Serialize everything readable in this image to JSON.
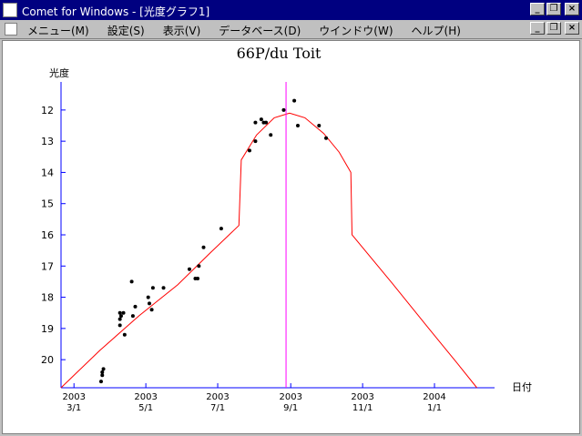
{
  "window": {
    "title": "Comet for Windows - [光度グラフ1]",
    "buttons": {
      "minimize": "_",
      "restore": "❐",
      "close": "×"
    }
  },
  "menu": {
    "items": [
      "メニュー(M)",
      "設定(S)",
      "表示(V)",
      "データベース(D)",
      "ウインドウ(W)",
      "ヘルプ(H)"
    ]
  },
  "chart_data": {
    "type": "scatter",
    "title": "66P/du Toit",
    "ylabel": "光度",
    "xlabel": "日付",
    "y_ticks": [
      12,
      13,
      14,
      15,
      16,
      17,
      18,
      19,
      20
    ],
    "ylim": [
      20.9,
      11.1
    ],
    "x_ticks": [
      {
        "year": "2003",
        "date": "3/1",
        "day": 0
      },
      {
        "year": "2003",
        "date": "5/1",
        "day": 61
      },
      {
        "year": "2003",
        "date": "7/1",
        "day": 122
      },
      {
        "year": "2003",
        "date": "9/1",
        "day": 184
      },
      {
        "year": "2003",
        "date": "11/1",
        "day": 245
      },
      {
        "year": "2004",
        "date": "1/1",
        "day": 306
      }
    ],
    "xlim": [
      -11,
      357
    ],
    "marker_day": 180,
    "points": [
      {
        "day": 23,
        "mag": 20.7
      },
      {
        "day": 24,
        "mag": 20.5
      },
      {
        "day": 24,
        "mag": 20.4
      },
      {
        "day": 25,
        "mag": 20.3
      },
      {
        "day": 39,
        "mag": 18.9
      },
      {
        "day": 39,
        "mag": 18.7
      },
      {
        "day": 39,
        "mag": 18.5
      },
      {
        "day": 40,
        "mag": 18.6
      },
      {
        "day": 42,
        "mag": 18.5
      },
      {
        "day": 43,
        "mag": 19.2
      },
      {
        "day": 49,
        "mag": 17.5
      },
      {
        "day": 50,
        "mag": 18.6
      },
      {
        "day": 52,
        "mag": 18.3
      },
      {
        "day": 63,
        "mag": 18.0
      },
      {
        "day": 64,
        "mag": 18.2
      },
      {
        "day": 66,
        "mag": 18.4
      },
      {
        "day": 67,
        "mag": 17.7
      },
      {
        "day": 76,
        "mag": 17.7
      },
      {
        "day": 98,
        "mag": 17.1
      },
      {
        "day": 103,
        "mag": 17.4
      },
      {
        "day": 105,
        "mag": 17.4
      },
      {
        "day": 106,
        "mag": 17.0
      },
      {
        "day": 110,
        "mag": 16.4
      },
      {
        "day": 125,
        "mag": 15.8
      },
      {
        "day": 149,
        "mag": 13.3
      },
      {
        "day": 154,
        "mag": 13.0
      },
      {
        "day": 154,
        "mag": 12.4
      },
      {
        "day": 159,
        "mag": 12.3
      },
      {
        "day": 161,
        "mag": 12.4
      },
      {
        "day": 163,
        "mag": 12.4
      },
      {
        "day": 167,
        "mag": 12.8
      },
      {
        "day": 178,
        "mag": 12.0
      },
      {
        "day": 187,
        "mag": 11.7
      },
      {
        "day": 190,
        "mag": 12.5
      },
      {
        "day": 208,
        "mag": 12.5
      },
      {
        "day": 214,
        "mag": 12.9
      }
    ],
    "curve": [
      {
        "day": -11,
        "mag": 20.9
      },
      {
        "day": 22,
        "mag": 19.7
      },
      {
        "day": 55,
        "mag": 18.6
      },
      {
        "day": 88,
        "mag": 17.6
      },
      {
        "day": 115,
        "mag": 16.6
      },
      {
        "day": 140,
        "mag": 15.7
      },
      {
        "day": 142,
        "mag": 13.6
      },
      {
        "day": 155,
        "mag": 12.8
      },
      {
        "day": 170,
        "mag": 12.25
      },
      {
        "day": 183,
        "mag": 12.1
      },
      {
        "day": 196,
        "mag": 12.25
      },
      {
        "day": 212,
        "mag": 12.75
      },
      {
        "day": 225,
        "mag": 13.35
      },
      {
        "day": 235,
        "mag": 14.0
      },
      {
        "day": 236,
        "mag": 16.0
      },
      {
        "day": 270,
        "mag": 17.55
      },
      {
        "day": 300,
        "mag": 18.95
      },
      {
        "day": 325,
        "mag": 20.1
      },
      {
        "day": 342,
        "mag": 20.9
      }
    ],
    "colors": {
      "axis": "#0000ff",
      "curve": "#ff0000",
      "marker": "#ff00ff",
      "point": "#000000"
    }
  }
}
